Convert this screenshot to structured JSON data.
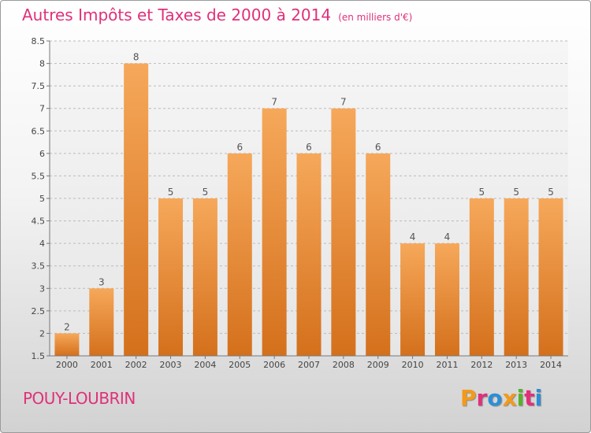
{
  "header": {
    "title": "Autres Impôts et Taxes de 2000 à 2014",
    "subtitle": "(en milliers d'€)"
  },
  "footer": {
    "place": "POUY-LOUBRIN",
    "brand": "Proxiti",
    "brand_colors": [
      "#f39a1a",
      "#e0307a",
      "#2c8fd6",
      "#f39a1a",
      "#59b12a",
      "#e0307a",
      "#2c8fd6"
    ]
  },
  "colors": {
    "bar_top": "#f6a85a",
    "bar_bottom": "#d4701c",
    "title": "#e0307a",
    "grid": "#bbbbbb"
  },
  "chart_data": {
    "type": "bar",
    "categories": [
      "2000",
      "2001",
      "2002",
      "2003",
      "2004",
      "2005",
      "2006",
      "2007",
      "2008",
      "2009",
      "2010",
      "2011",
      "2012",
      "2013",
      "2014"
    ],
    "values": [
      2,
      3,
      8,
      5,
      5,
      6,
      7,
      6,
      7,
      6,
      4,
      4,
      5,
      5,
      5
    ],
    "data_labels": [
      "2",
      "3",
      "8",
      "5",
      "5",
      "6",
      "7",
      "6",
      "7",
      "6",
      "4",
      "4",
      "5",
      "5",
      "5"
    ],
    "y_ticks": [
      "1.5",
      "2",
      "2.5",
      "3",
      "3.5",
      "4",
      "4.5",
      "5",
      "5.5",
      "6",
      "6.5",
      "7",
      "7.5",
      "8",
      "8.5"
    ],
    "ylim": [
      1.5,
      8.5
    ],
    "grid": "horizontal dashed",
    "title": "Autres Impôts et Taxes de 2000 à 2014",
    "xlabel": "",
    "ylabel": ""
  }
}
